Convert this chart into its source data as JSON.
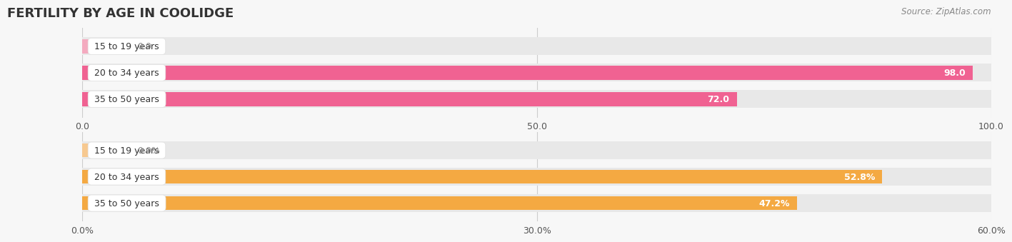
{
  "title": "FERTILITY BY AGE IN COOLIDGE",
  "source": "Source: ZipAtlas.com",
  "top_chart": {
    "categories": [
      "15 to 19 years",
      "20 to 34 years",
      "35 to 50 years"
    ],
    "values": [
      0.0,
      98.0,
      72.0
    ],
    "xlim": [
      0.0,
      100.0
    ],
    "xticks": [
      0.0,
      50.0,
      100.0
    ],
    "bar_color": "#F06292",
    "bar_color_light": "#F4AABF",
    "track_color": "#E8E8E8"
  },
  "bottom_chart": {
    "categories": [
      "15 to 19 years",
      "20 to 34 years",
      "35 to 50 years"
    ],
    "values": [
      0.0,
      52.8,
      47.2
    ],
    "xlim": [
      0.0,
      60.0
    ],
    "xticks": [
      0.0,
      30.0,
      60.0
    ],
    "bar_color": "#F4A942",
    "bar_color_light": "#F7C990",
    "track_color": "#E8E8E8"
  },
  "bg_color": "#F7F7F7",
  "label_bg_color": "#FFFFFF",
  "label_border_color": "#E0E0E0",
  "title_fontsize": 13,
  "label_fontsize": 9,
  "tick_fontsize": 9,
  "value_fontsize": 9
}
